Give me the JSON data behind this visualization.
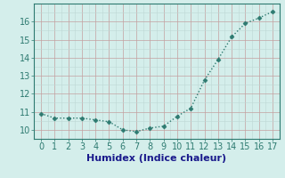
{
  "x": [
    0,
    1,
    2,
    3,
    4,
    5,
    6,
    7,
    8,
    9,
    10,
    11,
    12,
    13,
    14,
    15,
    16,
    17
  ],
  "y": [
    10.9,
    10.65,
    10.65,
    10.65,
    10.55,
    10.45,
    10.0,
    9.9,
    10.1,
    10.2,
    10.75,
    11.2,
    12.75,
    13.9,
    15.15,
    15.9,
    16.2,
    16.55
  ],
  "line_color": "#2d7a70",
  "marker": "D",
  "marker_size": 2.5,
  "linewidth": 1.0,
  "xlabel": "Humidex (Indice chaleur)",
  "xlim": [
    -0.5,
    17.5
  ],
  "ylim": [
    9.5,
    17.0
  ],
  "yticks": [
    10,
    11,
    12,
    13,
    14,
    15,
    16
  ],
  "xticks": [
    0,
    1,
    2,
    3,
    4,
    5,
    6,
    7,
    8,
    9,
    10,
    11,
    12,
    13,
    14,
    15,
    16,
    17
  ],
  "bg_color": "#d4eeeb",
  "grid_color_major": "#c4a0a0",
  "grid_color_minor": "#bdd8d4",
  "xlabel_fontsize": 8,
  "tick_fontsize": 7,
  "xlabel_color": "#1a1a8c",
  "tick_color": "#2d7a70"
}
